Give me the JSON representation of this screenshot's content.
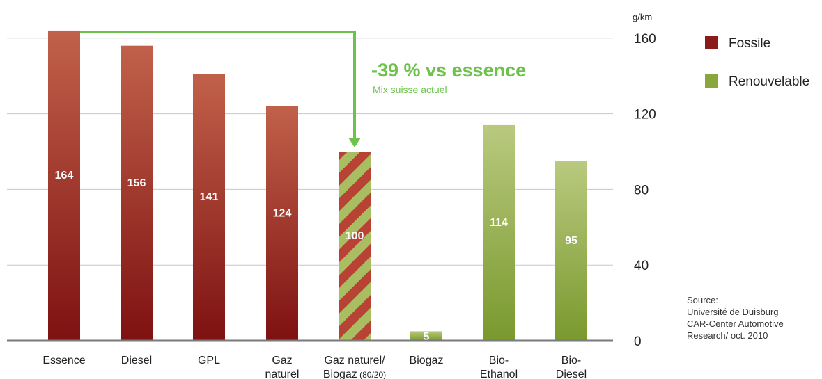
{
  "chart_data": {
    "type": "bar",
    "categories": [
      "Essence",
      "Diesel",
      "GPL",
      "Gaz naturel",
      "Gaz naturel/ Biogaz (80/20)",
      "Biogaz",
      "Bio-Ethanol",
      "Bio-Diesel"
    ],
    "category_labels": [
      [
        "Essence"
      ],
      [
        "Diesel"
      ],
      [
        "GPL"
      ],
      [
        "Gaz",
        "naturel"
      ],
      [
        "Gaz naturel/",
        "Biogaz (80/20)"
      ],
      [
        "Biogaz"
      ],
      [
        "Bio-",
        "Ethanol"
      ],
      [
        "Bio-",
        "Diesel"
      ]
    ],
    "values": [
      164,
      156,
      141,
      124,
      100,
      5,
      114,
      95
    ],
    "kinds": [
      "fossil",
      "fossil",
      "fossil",
      "fossil",
      "mixed",
      "renewable",
      "renewable",
      "renewable"
    ],
    "unit": "g/km",
    "yticks": [
      0,
      40,
      80,
      120,
      160
    ],
    "ylim": [
      0,
      168
    ],
    "grid": true,
    "legend": {
      "placement": "top-right",
      "items": [
        {
          "name": "Fossile",
          "color": "#8b1a1a"
        },
        {
          "name": "Renouvelable",
          "color": "#8aa63c"
        }
      ]
    },
    "annotation": {
      "title": "-39 % vs essence",
      "subtitle": "Mix suisse actuel",
      "from_category": 0,
      "to_category": 4,
      "color": "#6cc24a"
    },
    "source": [
      "Source:",
      "Université de Duisburg",
      "CAR-Center Automotive",
      "Research/ oct. 2010"
    ]
  },
  "colors": {
    "fossil_light": "#c1614a",
    "fossil_dark": "#7e1111",
    "renewable_light": "#b9c97f",
    "renewable_dark": "#79992d",
    "grid": "#c8c8c8",
    "axis": "#7a7a7a",
    "text": "#222222",
    "annotation": "#6cc24a"
  }
}
